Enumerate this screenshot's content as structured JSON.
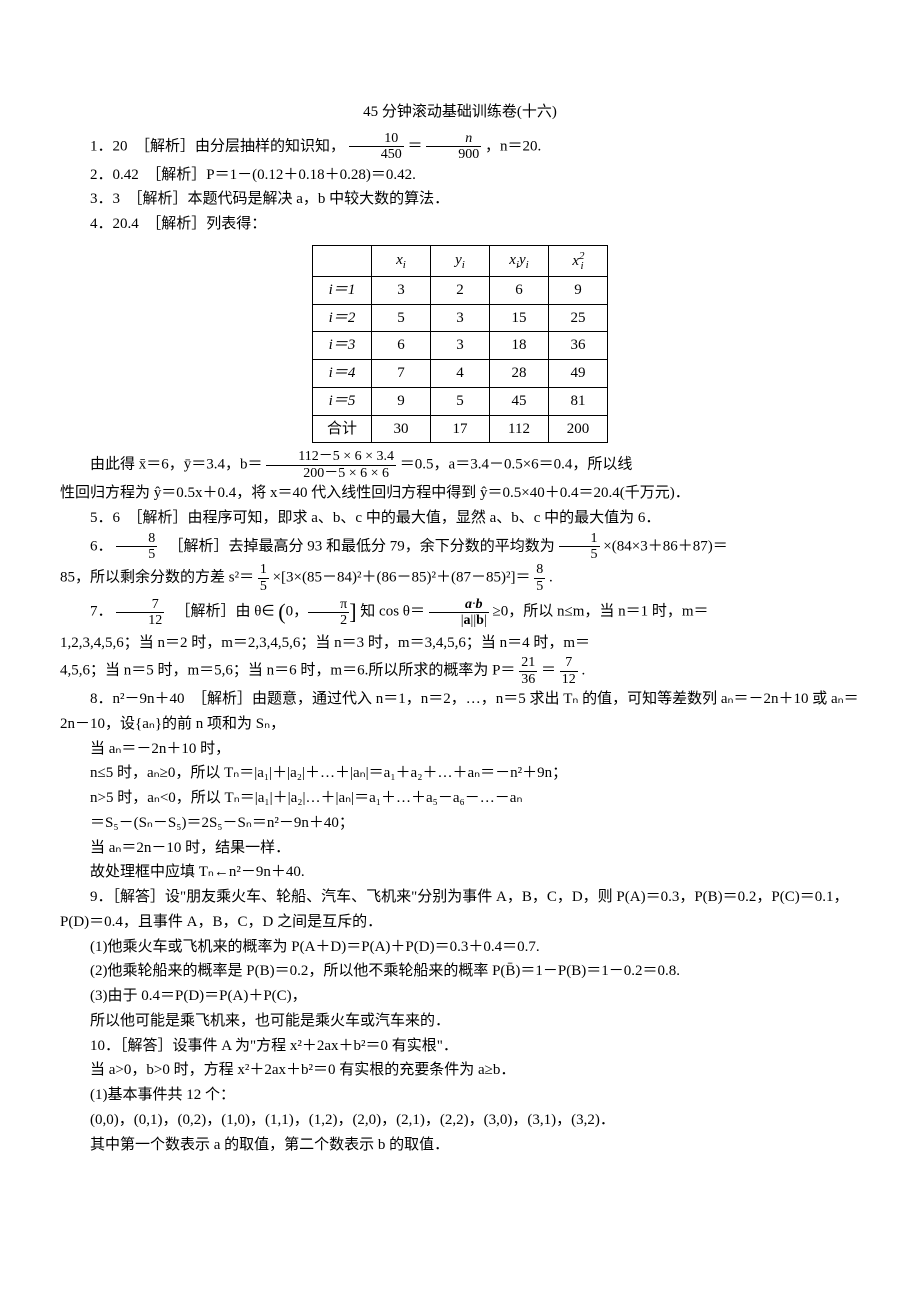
{
  "title": "45 分钟滚动基础训练卷(十六)",
  "q1": {
    "lead": "1．20　［解析］由分层抽样的知识知，",
    "frac_a_num": "10",
    "frac_a_den": "450",
    "mid": "＝",
    "frac_b_num": "n",
    "frac_b_den": "900",
    "tail": "，n＝20."
  },
  "q2": "2．0.42　［解析］P＝1－(0.12＋0.18＋0.28)＝0.42.",
  "q3": "3．3　［解析］本题代码是解决 a，b 中较大数的算法．",
  "q4_head": "4．20.4　［解析］列表得：",
  "table": {
    "headers": [
      "",
      "xᵢ",
      "yᵢ",
      "xᵢyᵢ",
      "x²ᵢ"
    ],
    "rows": [
      [
        "i＝1",
        "3",
        "2",
        "6",
        "9"
      ],
      [
        "i＝2",
        "5",
        "3",
        "15",
        "25"
      ],
      [
        "i＝3",
        "6",
        "3",
        "18",
        "36"
      ],
      [
        "i＝4",
        "7",
        "4",
        "28",
        "49"
      ],
      [
        "i＝5",
        "9",
        "5",
        "45",
        "81"
      ],
      [
        "合计",
        "30",
        "17",
        "112",
        "200"
      ]
    ]
  },
  "q4_after1_a": "由此得 x̄＝6，ȳ＝3.4，b＝",
  "q4_frac_num": "112－5 × 6 × 3.4",
  "q4_frac_den": "200－5 × 6 × 6",
  "q4_after1_b": "＝0.5，a＝3.4－0.5×6＝0.4，所以线",
  "q4_after2": "性回归方程为 ŷ＝0.5x＋0.4，将 x＝40 代入线性回归方程中得到 ŷ＝0.5×40＋0.4＝20.4(千万元)．",
  "q5": "5．6　［解析］由程序可知，即求 a、b、c 中的最大值，显然 a、b、c 中的最大值为 6．",
  "q6": {
    "lead": "6．",
    "ans_num": "8",
    "ans_den": "5",
    "mid1": "　［解析］去掉最高分 93 和最低分 79，余下分数的平均数为",
    "f1_num": "1",
    "f1_den": "5",
    "mid2": "×(84×3＋86＋87)＝",
    "line2_a": "85，所以剩余分数的方差 s²＝",
    "f2_num": "1",
    "f2_den": "5",
    "line2_b": "×[3×(85－84)²＋(86－85)²＋(87－85)²]＝",
    "f3_num": "8",
    "f3_den": "5",
    "line2_c": "."
  },
  "q7": {
    "lead": "7．",
    "ans_num": "7",
    "ans_den": "12",
    "mid1": "　［解析］由 θ∈",
    "interval": "(0，",
    "pi_num": "π",
    "pi_den": "2",
    "mid_int": "]",
    "mid2": "知 cos θ＝",
    "dot_num": "a·b",
    "dot_den": "|a||b|",
    "mid3": "≥0，所以 n≤m，当 n＝1 时，m＝",
    "line2": "1,2,3,4,5,6；当 n＝2 时，m＝2,3,4,5,6；当 n＝3 时，m＝3,4,5,6；当 n＝4 时，m＝",
    "line3_a": "4,5,6；当 n＝5 时，m＝5,6；当 n＝6 时，m＝6.所以所求的概率为 P＝",
    "p1_num": "21",
    "p1_den": "36",
    "line3_b": "＝",
    "p2_num": "7",
    "p2_den": "12",
    "line3_c": "."
  },
  "q8": {
    "l1": "8．n²－9n＋40　［解析］由题意，通过代入 n＝1，n＝2，…，n＝5 求出 Tₙ 的值，可知等差数列 aₙ＝－2n＋10 或 aₙ＝2n－10，设{aₙ}的前 n 项和为 Sₙ，",
    "l2": "当 aₙ＝－2n＋10 时，",
    "l3": "n≤5 时，aₙ≥0，所以 Tₙ＝|a₁|＋|a₂|＋…＋|aₙ|＝a₁＋a₂＋…＋aₙ＝－n²＋9n；",
    "l4": "n>5 时，aₙ<0，所以 Tₙ＝|a₁|＋|a₂|…＋|aₙ|＝a₁＋…＋a₅－a₆－…－aₙ",
    "l5": "＝S₅－(Sₙ－S₅)＝2S₅－Sₙ＝n²－9n＋40；",
    "l6": "当 aₙ＝2n－10 时，结果一样．",
    "l7": "故处理框中应填 Tₙ←n²－9n＋40."
  },
  "q9": {
    "l1": "9．［解答］设\"朋友乘火车、轮船、汽车、飞机来\"分别为事件 A，B，C，D，则 P(A)＝0.3，P(B)＝0.2，P(C)＝0.1，P(D)＝0.4，且事件 A，B，C，D 之间是互斥的．",
    "l2": "(1)他乘火车或飞机来的概率为 P(A＋D)＝P(A)＋P(D)＝0.3＋0.4＝0.7.",
    "l3": "(2)他乘轮船来的概率是 P(B)＝0.2，所以他不乘轮船来的概率 P(B̄)＝1－P(B)＝1－0.2＝0.8.",
    "l4": "(3)由于 0.4＝P(D)＝P(A)＋P(C)，",
    "l5": "所以他可能是乘飞机来，也可能是乘火车或汽车来的．"
  },
  "q10": {
    "l1": "10．［解答］设事件 A 为\"方程 x²＋2ax＋b²＝0 有实根\"．",
    "l2": "当 a>0，b>0 时，方程 x²＋2ax＋b²＝0 有实根的充要条件为 a≥b．",
    "l3": "(1)基本事件共 12 个：",
    "l4": "(0,0)，(0,1)，(0,2)，(1,0)，(1,1)，(1,2)，(2,0)，(2,1)，(2,2)，(3,0)，(3,1)，(3,2)．",
    "l5": "其中第一个数表示 a 的取值，第二个数表示 b 的取值．"
  }
}
